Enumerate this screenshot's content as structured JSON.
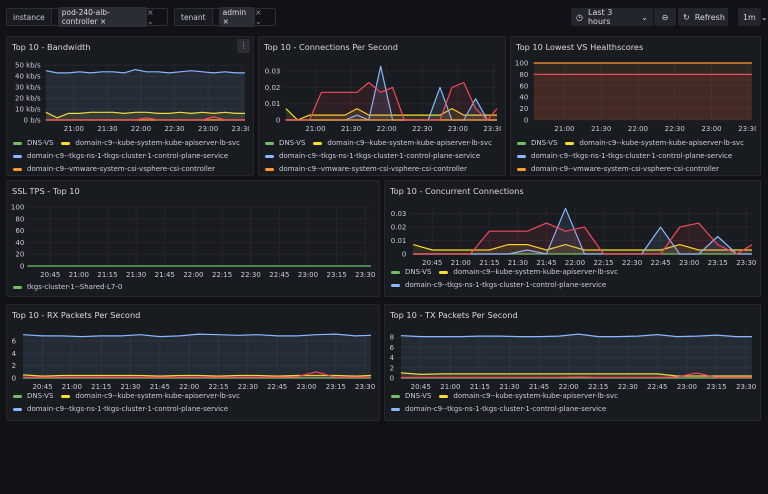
{
  "variables": [
    {
      "label": "instance",
      "value": "pod-240-alb-controller"
    },
    {
      "label": "tenant",
      "value": "admin"
    }
  ],
  "toolbar": {
    "time_range": "Last 3 hours",
    "refresh_label": "Refresh",
    "refresh_interval": "1m"
  },
  "colors": {
    "DNS-VS": "#73bf69",
    "kube-apiserver": "#fade2a",
    "control-plane": "#8ab8ff",
    "csi-controller": "#ff9830",
    "unnamed": "#f2495c"
  },
  "chart_data": [
    {
      "id": "bandwidth",
      "title": "Top 10 - Bandwidth",
      "type": "line",
      "xlim": [
        "20:33",
        "23:33"
      ],
      "ylim": [
        0,
        52
      ],
      "yticks": [
        0,
        10,
        20,
        30,
        40,
        50
      ],
      "ytick_labels": [
        "0 b/s",
        "10 kb/s",
        "20 kb/s",
        "30 kb/s",
        "40 kb/s",
        "50 kb/s"
      ],
      "xticks": [
        "21:00",
        "21:30",
        "22:00",
        "22:30",
        "23:00",
        "23:30"
      ],
      "x": [
        "20:35",
        "20:45",
        "20:55",
        "21:05",
        "21:15",
        "21:25",
        "21:35",
        "21:45",
        "21:55",
        "22:05",
        "22:15",
        "22:25",
        "22:35",
        "22:45",
        "22:55",
        "23:05",
        "23:15",
        "23:25",
        "23:33"
      ],
      "series": [
        {
          "name": "DNS-VS",
          "color": "#73bf69",
          "values": [
            0,
            0,
            0,
            0,
            0,
            0,
            0,
            0,
            0,
            0,
            0,
            0,
            0,
            0,
            0,
            0,
            0,
            0,
            0
          ]
        },
        {
          "name": "domain-c9--kube-system-kube-apiserver-lb-svc",
          "color": "#fade2a",
          "values": [
            7,
            2,
            6,
            6,
            7,
            7,
            7,
            6,
            7,
            7,
            6,
            6,
            7,
            6,
            7,
            6,
            7,
            6,
            6
          ]
        },
        {
          "name": "domain-c9--tkgs-ns-1-tkgs-cluster-1-control-plane-service",
          "color": "#8ab8ff",
          "values": [
            45,
            43,
            43,
            44,
            43,
            44,
            44,
            43,
            46,
            44,
            44,
            43,
            44,
            45,
            44,
            43,
            44,
            43,
            43
          ]
        },
        {
          "name": "domain-c9--vmware-system-csi-vsphere-csi-controller",
          "color": "#ff9830",
          "values": [
            0,
            0,
            0,
            0,
            0,
            0,
            0,
            0,
            0,
            0,
            0,
            0,
            0,
            0,
            0,
            0,
            0,
            0,
            0
          ]
        },
        {
          "color": "#f2495c",
          "values": [
            0,
            0,
            0,
            0,
            0,
            0,
            0,
            0,
            0,
            2,
            0,
            0,
            0,
            0,
            0,
            3,
            0,
            0,
            0
          ]
        }
      ]
    },
    {
      "id": "cps",
      "title": "Top 10 - Connections Per Second",
      "type": "line",
      "xlim": [
        "20:33",
        "23:33"
      ],
      "ylim": [
        0,
        0.035
      ],
      "yticks": [
        0,
        0.01,
        0.02,
        0.03
      ],
      "ytick_labels": [
        "0",
        "0.01",
        "0.02",
        "0.03"
      ],
      "xticks": [
        "21:00",
        "21:30",
        "22:00",
        "22:30",
        "23:00",
        "23:30"
      ],
      "x": [
        "20:35",
        "20:45",
        "20:55",
        "21:05",
        "21:15",
        "21:25",
        "21:35",
        "21:45",
        "21:55",
        "22:05",
        "22:15",
        "22:25",
        "22:35",
        "22:45",
        "22:55",
        "23:05",
        "23:15",
        "23:25",
        "23:33"
      ],
      "series": [
        {
          "name": "DNS-VS",
          "color": "#73bf69",
          "values": [
            0,
            0,
            0,
            0,
            0,
            0,
            0,
            0,
            0,
            0,
            0,
            0,
            0,
            0,
            0,
            0,
            0,
            0,
            0
          ]
        },
        {
          "name": "domain-c9--kube-system-kube-apiserver-lb-svc",
          "color": "#fade2a",
          "values": [
            0.007,
            0,
            0.003,
            0.003,
            0.003,
            0.003,
            0.007,
            0.003,
            0.003,
            0.003,
            0.003,
            0.003,
            0.003,
            0.003,
            0.007,
            0.003,
            0.003,
            0.003,
            0.003
          ]
        },
        {
          "name": "domain-c9--tkgs-ns-1-tkgs-cluster-1-control-plane-service",
          "color": "#8ab8ff",
          "values": [
            0,
            0,
            0,
            0,
            0,
            0,
            0.003,
            0,
            0.033,
            0,
            0,
            0,
            0,
            0.02,
            0,
            0,
            0.013,
            0,
            0
          ]
        },
        {
          "name": "domain-c9--vmware-system-csi-vsphere-csi-controller",
          "color": "#ff9830",
          "values": [
            0,
            0,
            0,
            0,
            0,
            0,
            0,
            0,
            0,
            0,
            0,
            0,
            0,
            0,
            0,
            0,
            0,
            0,
            0
          ]
        },
        {
          "color": "#f2495c",
          "values": [
            0,
            0,
            0,
            0.017,
            0.017,
            0.017,
            0.017,
            0.023,
            0.017,
            0.02,
            0,
            0,
            0,
            0,
            0.02,
            0.023,
            0.007,
            0,
            0.007
          ]
        }
      ]
    },
    {
      "id": "health",
      "title": "Top 10 Lowest VS Healthscores",
      "type": "line",
      "xlim": [
        "20:33",
        "23:33"
      ],
      "ylim": [
        0,
        100
      ],
      "yticks": [
        0,
        20,
        40,
        60,
        80,
        100
      ],
      "ytick_labels": [
        "0",
        "20",
        "40",
        "60",
        "80",
        "100"
      ],
      "xticks": [
        "21:00",
        "21:30",
        "22:00",
        "22:30",
        "23:00",
        "23:30"
      ],
      "x": [
        "20:35",
        "23:33"
      ],
      "series": [
        {
          "name": "DNS-VS",
          "color": "#73bf69",
          "hidden": true,
          "values": [
            null,
            null
          ]
        },
        {
          "name": "domain-c9--kube-system-kube-apiserver-lb-svc",
          "color": "#fade2a",
          "hidden": true,
          "values": [
            null,
            null
          ]
        },
        {
          "name": "domain-c9--tkgs-ns-1-tkgs-cluster-1-control-plane-service",
          "color": "#8ab8ff",
          "hidden": true,
          "values": [
            null,
            null
          ]
        },
        {
          "name": "domain-c9--vmware-system-csi-vsphere-csi-controller",
          "color": "#ff9830",
          "values": [
            100,
            100
          ]
        },
        {
          "color": "#f2495c",
          "values": [
            80,
            80
          ]
        }
      ]
    },
    {
      "id": "ssl",
      "title": "SSL TPS - Top 10",
      "type": "line",
      "xlim": [
        "20:33",
        "23:33"
      ],
      "ylim": [
        0,
        100
      ],
      "yticks": [
        0,
        20,
        40,
        60,
        80,
        100
      ],
      "ytick_labels": [
        "0",
        "20",
        "40",
        "60",
        "80",
        "100"
      ],
      "xticks": [
        "20:45",
        "21:00",
        "21:15",
        "21:30",
        "21:45",
        "22:00",
        "22:15",
        "22:30",
        "22:45",
        "23:00",
        "23:15",
        "23:30"
      ],
      "x": [
        "20:33",
        "23:33"
      ],
      "series": [
        {
          "name": "tkgs-cluster-1--Shared-L7-0",
          "color": "#73bf69",
          "values": [
            0,
            0
          ]
        }
      ]
    },
    {
      "id": "concurrent",
      "title": "Top 10 - Concurrent Connections",
      "type": "line",
      "xlim": [
        "20:33",
        "23:33"
      ],
      "ylim": [
        0,
        0.035
      ],
      "yticks": [
        0,
        0.01,
        0.02,
        0.03
      ],
      "ytick_labels": [
        "0",
        "0.01",
        "0.02",
        "0.03"
      ],
      "xticks": [
        "20:45",
        "21:00",
        "21:15",
        "21:30",
        "21:45",
        "22:00",
        "22:15",
        "22:30",
        "22:45",
        "23:00",
        "23:15",
        "23:30"
      ],
      "x": [
        "20:35",
        "20:45",
        "20:55",
        "21:05",
        "21:15",
        "21:25",
        "21:35",
        "21:45",
        "21:55",
        "22:05",
        "22:15",
        "22:25",
        "22:35",
        "22:45",
        "22:55",
        "23:05",
        "23:15",
        "23:25",
        "23:33"
      ],
      "series": [
        {
          "name": "DNS-VS",
          "color": "#73bf69",
          "values": [
            0,
            0,
            0,
            0,
            0,
            0,
            0,
            0,
            0,
            0,
            0,
            0,
            0,
            0,
            0,
            0,
            0,
            0,
            0
          ]
        },
        {
          "name": "domain-c9--kube-system-kube-apiserver-lb-svc",
          "color": "#fade2a",
          "values": [
            0.007,
            0.003,
            0.003,
            0.003,
            0.003,
            0.007,
            0.007,
            0.003,
            0.007,
            0.003,
            0.003,
            0.003,
            0.003,
            0.003,
            0.007,
            0.003,
            0.003,
            0.003,
            0.003
          ]
        },
        {
          "name": "domain-c9--tkgs-ns-1-tkgs-cluster-1-control-plane-service",
          "color": "#8ab8ff",
          "values": [
            0,
            0,
            0,
            0,
            0,
            0,
            0.003,
            0,
            0.034,
            0,
            0,
            0,
            0,
            0.02,
            0,
            0,
            0.013,
            0,
            0
          ]
        },
        {
          "color": "#f2495c",
          "values": [
            0,
            0,
            0,
            0,
            0.017,
            0.017,
            0.017,
            0.023,
            0.017,
            0.02,
            0,
            0,
            0,
            0,
            0.02,
            0.023,
            0.007,
            0,
            0.007
          ]
        }
      ]
    },
    {
      "id": "rx",
      "title": "Top 10 - RX Packets Per Second",
      "type": "line",
      "xlim": [
        "20:33",
        "23:33"
      ],
      "ylim": [
        0,
        7.6
      ],
      "yticks": [
        0,
        2,
        4,
        6
      ],
      "ytick_labels": [
        "0",
        "2",
        "4",
        "6"
      ],
      "xticks": [
        "20:45",
        "21:00",
        "21:15",
        "21:30",
        "21:45",
        "22:00",
        "22:15",
        "22:30",
        "22:45",
        "23:00",
        "23:15",
        "23:30"
      ],
      "x": [
        "20:35",
        "20:45",
        "20:55",
        "21:05",
        "21:15",
        "21:25",
        "21:35",
        "21:45",
        "21:55",
        "22:05",
        "22:15",
        "22:25",
        "22:35",
        "22:45",
        "22:55",
        "23:05",
        "23:15",
        "23:25",
        "23:33"
      ],
      "series": [
        {
          "name": "DNS-VS",
          "color": "#73bf69",
          "values": [
            0,
            0,
            0,
            0,
            0,
            0,
            0,
            0,
            0,
            0,
            0,
            0,
            0,
            0,
            0,
            0,
            0,
            0,
            0
          ]
        },
        {
          "name": "domain-c9--kube-system-kube-apiserver-lb-svc",
          "color": "#fade2a",
          "values": [
            0.5,
            0.3,
            0.4,
            0.4,
            0.4,
            0.4,
            0.4,
            0.3,
            0.4,
            0.4,
            0.3,
            0.4,
            0.4,
            0.3,
            0.4,
            0.4,
            0.4,
            0.3,
            0.4
          ]
        },
        {
          "name": "domain-c9--tkgs-ns-1-tkgs-cluster-1-control-plane-service",
          "color": "#8ab8ff",
          "values": [
            7,
            6.8,
            6.8,
            6.7,
            6.8,
            6.8,
            7,
            6.7,
            6.8,
            7.1,
            7,
            6.9,
            7,
            6.8,
            6.8,
            7,
            7.1,
            6.8,
            6.9
          ]
        },
        {
          "color": "#f2495c",
          "values": [
            0.1,
            0.1,
            0.1,
            0.1,
            0.1,
            0.1,
            0.1,
            0.1,
            0.1,
            0.1,
            0.1,
            0.1,
            0.1,
            0.1,
            0.2,
            1,
            0.1,
            0.1,
            0.1
          ]
        }
      ]
    },
    {
      "id": "tx",
      "title": "Top 10 - TX Packets Per Second",
      "type": "line",
      "xlim": [
        "20:33",
        "23:33"
      ],
      "ylim": [
        0,
        9.2
      ],
      "yticks": [
        0,
        2,
        4,
        6,
        8
      ],
      "ytick_labels": [
        "0",
        "2",
        "4",
        "6",
        "8"
      ],
      "xticks": [
        "20:45",
        "21:00",
        "21:15",
        "21:30",
        "21:45",
        "22:00",
        "22:15",
        "22:30",
        "22:45",
        "23:00",
        "23:15",
        "23:30"
      ],
      "x": [
        "20:35",
        "20:45",
        "20:55",
        "21:05",
        "21:15",
        "21:25",
        "21:35",
        "21:45",
        "21:55",
        "22:05",
        "22:15",
        "22:25",
        "22:35",
        "22:45",
        "22:55",
        "23:05",
        "23:15",
        "23:25",
        "23:33"
      ],
      "series": [
        {
          "name": "DNS-VS",
          "color": "#73bf69",
          "values": [
            0,
            0,
            0,
            0,
            0,
            0,
            0,
            0,
            0,
            0,
            0,
            0,
            0,
            0,
            0,
            0,
            0,
            0,
            0
          ]
        },
        {
          "name": "domain-c9--kube-system-kube-apiserver-lb-svc",
          "color": "#fade2a",
          "values": [
            1,
            0.7,
            0.8,
            0.8,
            0.8,
            0.8,
            0.8,
            0.8,
            0.8,
            0.8,
            0.8,
            0.8,
            0.8,
            0.8,
            0.4,
            0.4,
            0.4,
            0.4,
            0.4
          ]
        },
        {
          "name": "domain-c9--tkgs-ns-1-tkgs-cluster-1-control-plane-service",
          "color": "#8ab8ff",
          "values": [
            8.3,
            8.1,
            8.1,
            8.1,
            8.2,
            8.2,
            8.1,
            8.1,
            8.2,
            8.6,
            8.1,
            8.1,
            8.2,
            8.5,
            8.1,
            8.2,
            8.4,
            8.1,
            8.1
          ]
        },
        {
          "color": "#f2495c",
          "values": [
            0.1,
            0.1,
            0.1,
            0.1,
            0.1,
            0.1,
            0.1,
            0.1,
            0.1,
            0.2,
            0.1,
            0.1,
            0.1,
            0.1,
            0.2,
            1,
            0.1,
            0.1,
            0.1
          ]
        }
      ]
    }
  ]
}
